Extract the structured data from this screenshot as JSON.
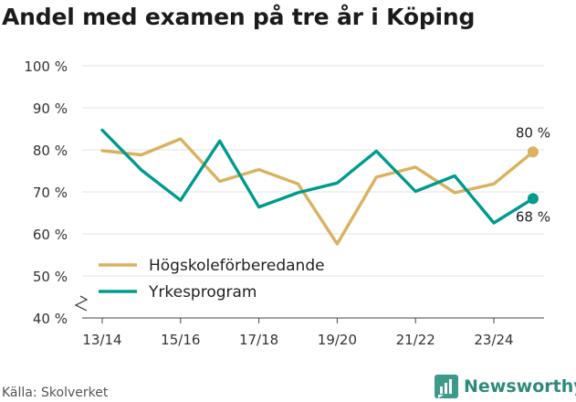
{
  "chart_data": {
    "type": "line",
    "title": "Andel med examen på tre år i Köping",
    "xlabel": "",
    "ylabel": "",
    "ylim": [
      40,
      100
    ],
    "y_ticks": [
      "100 %",
      "90 %",
      "80 %",
      "70 %",
      "60 %",
      "50 %",
      "40 %"
    ],
    "y_tick_values": [
      100,
      90,
      80,
      70,
      60,
      50,
      40
    ],
    "x_ticks": [
      "13/14",
      "15/16",
      "17/18",
      "19/20",
      "21/22",
      "23/24"
    ],
    "x_tick_index": [
      0,
      2,
      4,
      6,
      8,
      10
    ],
    "categories": [
      "13/14",
      "14/15",
      "15/16",
      "16/17",
      "17/18",
      "18/19",
      "19/20",
      "20/21",
      "21/22",
      "22/23",
      "23/24",
      "24/25"
    ],
    "grid": true,
    "legend_position": "bottom-left",
    "series": [
      {
        "name": "Högskoleförberedande",
        "color": "#dab25f",
        "values": [
          79.8,
          78.8,
          82.6,
          72.5,
          75.3,
          71.9,
          57.6,
          73.5,
          75.9,
          69.8,
          71.9,
          79.5
        ],
        "end_label": "80 %"
      },
      {
        "name": "Yrkesprogram",
        "color": "#009b8e",
        "values": [
          84.7,
          75.2,
          68.0,
          82.1,
          66.4,
          69.8,
          72.1,
          79.7,
          70.1,
          73.8,
          62.6,
          68.4
        ],
        "end_label": "68 %"
      }
    ]
  },
  "footer": {
    "source": "Källa: Skolverket",
    "brand": "Newsworthy"
  }
}
